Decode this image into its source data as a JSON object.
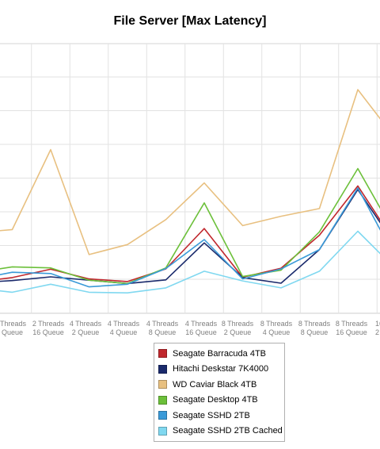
{
  "chart_data": {
    "type": "line",
    "title": "File Server [Max Latency]",
    "xlabel": "",
    "ylabel": "",
    "grid": true,
    "legend_position": "bottom-center",
    "categories": [
      [
        "1 Thread",
        "16 Queue"
      ],
      [
        "2 Threads",
        "2 Queue"
      ],
      [
        "2 Threads",
        "16 Queue"
      ],
      [
        "4 Threads",
        "2 Queue"
      ],
      [
        "4 Threads",
        "4 Queue"
      ],
      [
        "4 Threads",
        "8 Queue"
      ],
      [
        "4 Threads",
        "16 Queue"
      ],
      [
        "8 Threads",
        "2 Queue"
      ],
      [
        "8 Threads",
        "4 Queue"
      ],
      [
        "8 Threads",
        "8 Queue"
      ],
      [
        "8 Threads",
        "16 Queue"
      ],
      [
        "16 Threads",
        "2 Queue"
      ]
    ],
    "series": [
      {
        "name": "Seagate Barracuda 4TB",
        "color": "#c0272d",
        "values": [
          2.2,
          3.6,
          6.1,
          3.2,
          2.4,
          6.2,
          18.3,
          3.7,
          6.4,
          16.3,
          31.1,
          13.5
        ]
      },
      {
        "name": "Hitachi Deskstar 7K4000",
        "color": "#1a2a6c",
        "values": [
          2.0,
          2.7,
          3.8,
          2.8,
          1.8,
          2.9,
          14.0,
          3.6,
          1.9,
          12.0,
          30.0,
          13.0
        ]
      },
      {
        "name": "WD Caviar Black 4TB",
        "color": "#e8c080",
        "values": [
          17.0,
          18.0,
          42.0,
          10.5,
          13.5,
          21.0,
          32.0,
          19.2,
          22.0,
          24.3,
          60.0,
          45.0
        ]
      },
      {
        "name": "Seagate Desktop 4TB",
        "color": "#6cc03a",
        "values": [
          5.0,
          6.8,
          6.5,
          2.8,
          1.8,
          6.5,
          26.0,
          3.9,
          5.8,
          17.3,
          36.3,
          16.0
        ]
      },
      {
        "name": "Seagate SSHD 2TB",
        "color": "#3a9ad8",
        "values": [
          3.0,
          5.2,
          4.8,
          0.8,
          1.6,
          6.3,
          15.0,
          3.2,
          6.2,
          12.0,
          30.5,
          9.0
        ]
      },
      {
        "name": "Seagate SSHD 2TB Cached",
        "color": "#80d8f0",
        "values": [
          0.5,
          -0.8,
          1.6,
          -0.8,
          -1.0,
          0.5,
          5.5,
          2.6,
          0.5,
          5.5,
          17.5,
          6.0
        ]
      }
    ]
  },
  "visible_tick_labels": [
    [
      "Threads",
      "Queue"
    ],
    [
      "2 Threads",
      "16 Queue"
    ],
    [
      "4 Threads",
      "2 Queue"
    ],
    [
      "4 Threads",
      "4 Queue"
    ],
    [
      "4 Threads",
      "8 Queue"
    ],
    [
      "4 Threads",
      "16 Queue"
    ],
    [
      "8 Threads",
      "2 Queue"
    ],
    [
      "8 Threads",
      "4 Queue"
    ],
    [
      "8 Threads",
      "8 Queue"
    ],
    [
      "8 Threads",
      "16 Queue"
    ],
    [
      "16",
      "2"
    ]
  ],
  "legend": {
    "items": [
      {
        "label": "Seagate Barracuda 4TB",
        "color": "#c0272d"
      },
      {
        "label": "Hitachi Deskstar 7K4000",
        "color": "#1a2a6c"
      },
      {
        "label": "WD Caviar Black 4TB",
        "color": "#e8c080"
      },
      {
        "label": "Seagate Desktop 4TB",
        "color": "#6cc03a"
      },
      {
        "label": "Seagate SSHD 2TB",
        "color": "#3a9ad8"
      },
      {
        "label": "Seagate SSHD 2TB Cached",
        "color": "#80d8f0"
      }
    ]
  }
}
